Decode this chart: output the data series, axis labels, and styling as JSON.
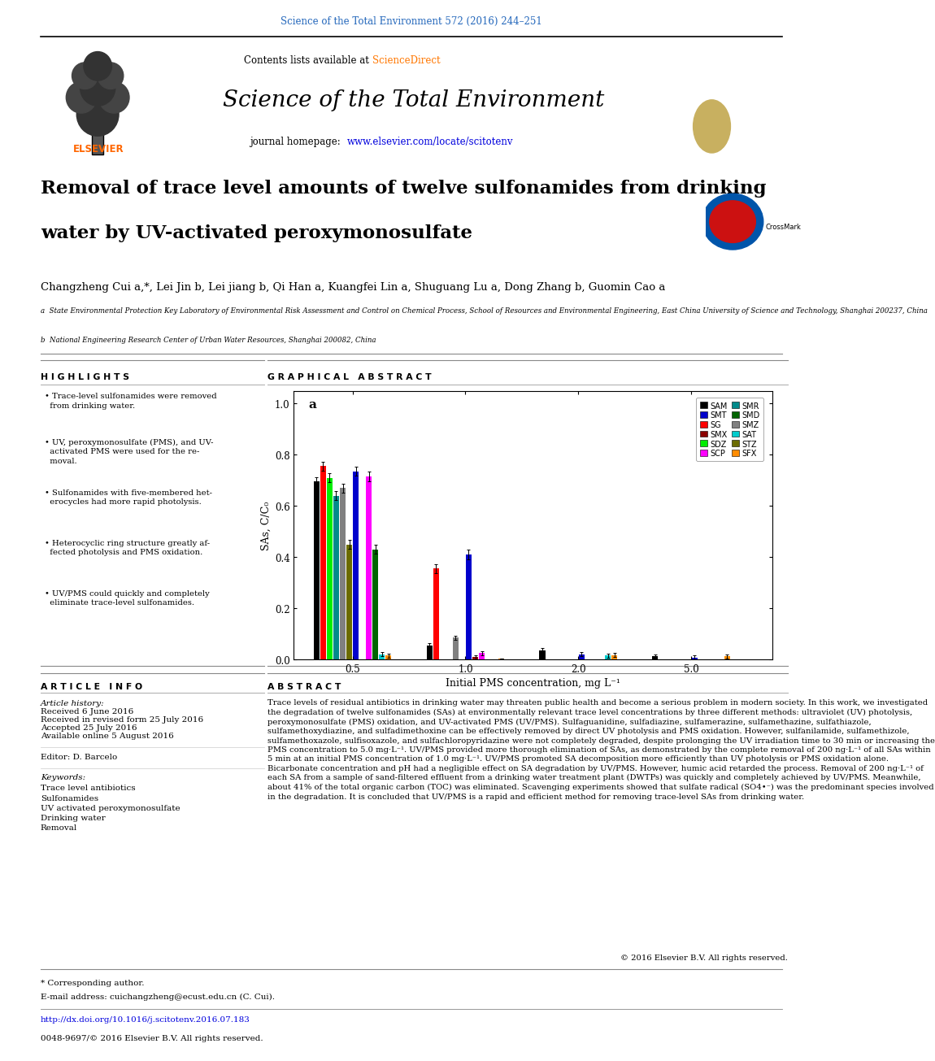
{
  "page_title": "Science of the Total Environment 572 (2016) 244–251",
  "journal_header": "Science of the Total Environment",
  "paper_title_line1": "Removal of trace level amounts of twelve sulfonamides from drinking",
  "paper_title_line2": "water by UV-activated peroxymonosulfate",
  "authors_line": "Changzheng Cui a,*, Lei Jin b, Lei jiang b, Qi Han a, Kuangfei Lin a, Shuguang Lu a, Dong Zhang b, Guomin Cao a",
  "affil_a": "a  State Environmental Protection Key Laboratory of Environmental Risk Assessment and Control on Chemical Process, School of Resources and Environmental Engineering, East China University of Science and Technology, Shanghai 200237, China",
  "affil_b": "b  National Engineering Research Center of Urban Water Resources, Shanghai 200082, China",
  "highlights_title": "H I G H L I G H T S",
  "highlights": [
    "• Trace-level sulfonamides were removed\n  from drinking water.",
    "• UV, peroxymonosulfate (PMS), and UV-\n  activated PMS were used for the re-\n  moval.",
    "• Sulfonamides with five-membered het-\n  erocycles had more rapid photolysis.",
    "• Heterocyclic ring structure greatly af-\n  fected photolysis and PMS oxidation.",
    "• UV/PMS could quickly and completely\n  eliminate trace-level sulfonamides."
  ],
  "graphical_abstract_title": "G R A P H I C A L   A B S T R A C T",
  "article_info_title": "A R T I C L E   I N F O",
  "article_history_label": "Article history:",
  "received": "Received 6 June 2016",
  "revised": "Received in revised form 25 July 2016",
  "accepted": "Accepted 25 July 2016",
  "available": "Available online 5 August 2016",
  "editor_label": "Editor: D. Barcelo",
  "keywords_label": "Keywords:",
  "keywords": "Trace level antibiotics\nSulfonamides\nUV activated peroxymonosulfate\nDrinking water\nRemoval",
  "abstract_title": "A B S T R A C T",
  "abstract_text": "Trace levels of residual antibiotics in drinking water may threaten public health and become a serious problem in modern society. In this work, we investigated the degradation of twelve sulfonamides (SAs) at environmentally relevant trace level concentrations by three different methods: ultraviolet (UV) photolysis, peroxymonosulfate (PMS) oxidation, and UV-activated PMS (UV/PMS). Sulfaguanidine, sulfadiazine, sulfamerazine, sulfamethazine, sulfathiazole, sulfamethoxydiazine, and sulfadimethoxine can be effectively removed by direct UV photolysis and PMS oxidation. However, sulfanilamide, sulfamethizole, sulfamethoxazole, sulfisoxazole, and sulfachloropyridazine were not completely degraded, despite prolonging the UV irradiation time to 30 min or increasing the PMS concentration to 5.0 mg·L⁻¹. UV/PMS provided more thorough elimination of SAs, as demonstrated by the complete removal of 200 ng·L⁻¹ of all SAs within 5 min at an initial PMS concentration of 1.0 mg·L⁻¹. UV/PMS promoted SA decomposition more efficiently than UV photolysis or PMS oxidation alone. Bicarbonate concentration and pH had a negligible effect on SA degradation by UV/PMS. However, humic acid retarded the process. Removal of 200 ng·L⁻¹ of each SA from a sample of sand-filtered effluent from a drinking water treatment plant (DWTPs) was quickly and completely achieved by UV/PMS. Meanwhile, about 41% of the total organic carbon (TOC) was eliminated. Scavenging experiments showed that sulfate radical (SO4•⁻) was the predominant species involved in the degradation. It is concluded that UV/PMS is a rapid and efficient method for removing trace-level SAs from drinking water.",
  "copyright_line": "© 2016 Elsevier B.V. All rights reserved.",
  "footer_corresponding": "* Corresponding author.",
  "footer_email": "E-mail address: cuichangzheng@ecust.edu.cn (C. Cui).",
  "footer_doi": "http://dx.doi.org/10.1016/j.scitotenv.2016.07.183",
  "footer_issn": "0048-9697/© 2016 Elsevier B.V. All rights reserved.",
  "chart_xlabel": "Initial PMS concentration, mg L⁻¹",
  "chart_ylabel": "SAs, C/C₀",
  "chart_label": "a",
  "series_names": [
    "SAM",
    "SG",
    "SDZ",
    "SMR",
    "SMZ",
    "STZ",
    "SMT",
    "SMX",
    "SCP",
    "SMD",
    "SAT",
    "SFX"
  ],
  "series_colors": [
    "#000000",
    "#ff0000",
    "#00ee00",
    "#008b8b",
    "#808080",
    "#6b6b00",
    "#0000cc",
    "#8b0000",
    "#ff00ff",
    "#006400",
    "#00cccc",
    "#ff8c00"
  ],
  "series_values": [
    [
      0.695,
      0.055,
      0.037,
      0.013
    ],
    [
      0.755,
      0.355,
      0.0,
      0.0
    ],
    [
      0.71,
      0.0,
      0.0,
      0.0
    ],
    [
      0.64,
      0.0,
      0.0,
      0.0
    ],
    [
      0.67,
      0.085,
      0.0,
      0.0
    ],
    [
      0.45,
      0.0,
      0.0,
      0.0
    ],
    [
      0.735,
      0.41,
      0.02,
      0.008
    ],
    [
      0.0,
      0.01,
      0.0,
      0.0
    ],
    [
      0.715,
      0.025,
      0.0,
      0.0
    ],
    [
      0.43,
      0.0,
      0.0,
      0.0
    ],
    [
      0.02,
      0.0,
      0.015,
      0.0
    ],
    [
      0.015,
      0.005,
      0.018,
      0.012
    ]
  ],
  "yticks": [
    0.0,
    0.2,
    0.4,
    0.6,
    0.8,
    1.0
  ],
  "xtick_labels": [
    "0.5",
    "1.0",
    "2.0",
    "5.0"
  ],
  "page_title_color": "#2266bb",
  "orange_color": "#ff6600",
  "blue_link_color": "#0000dd",
  "sciencedirect_color": "#ff7700"
}
